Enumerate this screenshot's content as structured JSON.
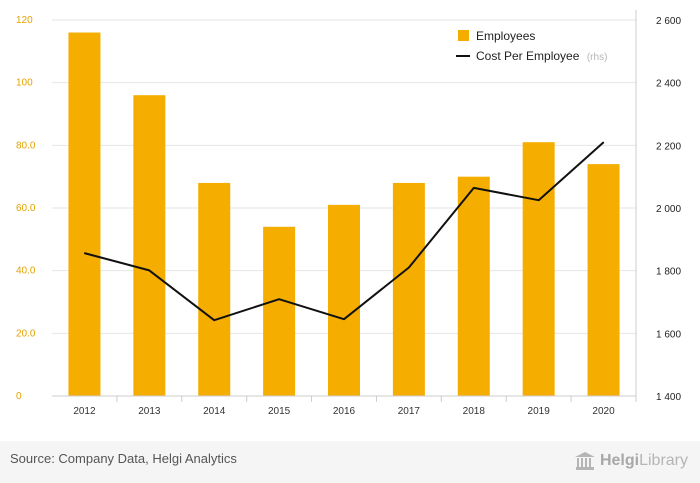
{
  "chart_data": {
    "type": "bar+line",
    "categories": [
      "2012",
      "2013",
      "2014",
      "2015",
      "2016",
      "2017",
      "2018",
      "2019",
      "2020"
    ],
    "series": [
      {
        "name": "Employees",
        "type": "bar",
        "axis": "left",
        "color": "#f5ae00",
        "values": [
          116,
          96,
          68,
          54,
          61,
          68,
          70,
          81,
          74
        ]
      },
      {
        "name": "Cost Per Employee",
        "suffix": "(rhs)",
        "type": "line",
        "axis": "right",
        "color": "#111111",
        "values": [
          1856,
          1801,
          1642,
          1709,
          1645,
          1810,
          2064,
          2025,
          2210
        ]
      }
    ],
    "left_axis": {
      "ylim": [
        0,
        120
      ],
      "ticks": [
        "0",
        "20.0",
        "40.0",
        "60.0",
        "80.0",
        "100",
        "120"
      ],
      "color": "#e3a300"
    },
    "right_axis": {
      "ylim": [
        1400,
        2600
      ],
      "ticks": [
        "1 400",
        "1 600",
        "1 800",
        "2 000",
        "2 200",
        "2 400",
        "2 600"
      ]
    },
    "grid": true,
    "legend_position": "top-right"
  },
  "footer": {
    "source": "Source: Company Data, Helgi Analytics",
    "logo_part1": "Helgi",
    "logo_part2": "Library"
  }
}
